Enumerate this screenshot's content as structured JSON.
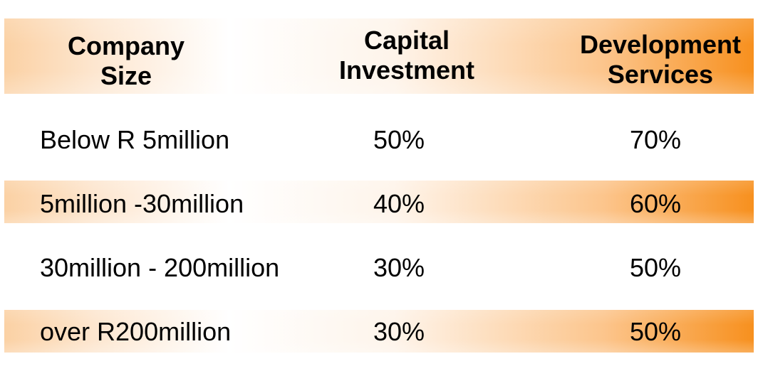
{
  "table": {
    "headers": {
      "company_size": "Company Size",
      "capital_investment": "Capital Investment",
      "development_services": "Development Services"
    },
    "rows": [
      {
        "company_size": "Below R 5million",
        "capital_investment": "50%",
        "development_services": "70%"
      },
      {
        "company_size": "5million -30million",
        "capital_investment": "40%",
        "development_services": "60%"
      },
      {
        "company_size": "30million - 200million",
        "capital_investment": "30%",
        "development_services": "50%"
      },
      {
        "company_size": "over R200million",
        "capital_investment": "30%",
        "development_services": "50%"
      }
    ]
  },
  "colors": {
    "accent_orange": "#f7901e",
    "text": "#000000",
    "background": "#ffffff"
  }
}
